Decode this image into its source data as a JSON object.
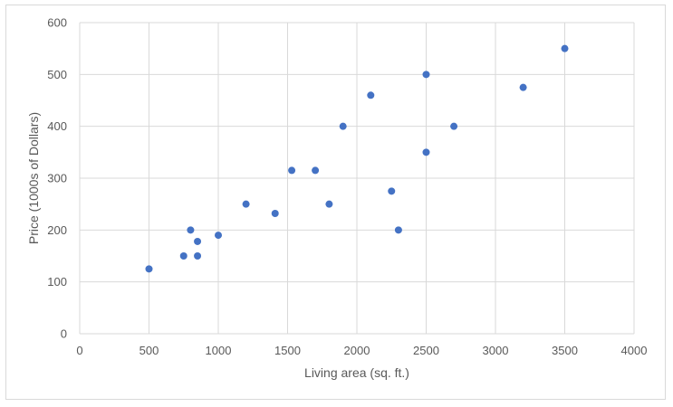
{
  "chart_data": {
    "type": "scatter",
    "title": "",
    "xlabel": "Living area (sq. ft.)",
    "ylabel": "Price (1000s of Dollars)",
    "xlim": [
      0,
      4000
    ],
    "ylim": [
      0,
      600
    ],
    "xticks": [
      0,
      500,
      1000,
      1500,
      2000,
      2500,
      3000,
      3500,
      4000
    ],
    "yticks": [
      0,
      100,
      200,
      300,
      400,
      500,
      600
    ],
    "xtick_labels": [
      "0",
      "500",
      "1000",
      "1500",
      "2000",
      "2500",
      "3000",
      "3500",
      "4000"
    ],
    "ytick_labels": [
      "0",
      "100",
      "200",
      "300",
      "400",
      "500",
      "600"
    ],
    "grid": true,
    "legend": "none",
    "marker_color": "#4472c4",
    "series": [
      {
        "points": [
          {
            "x": 500,
            "y": 125
          },
          {
            "x": 750,
            "y": 150
          },
          {
            "x": 800,
            "y": 200
          },
          {
            "x": 850,
            "y": 150
          },
          {
            "x": 850,
            "y": 178
          },
          {
            "x": 1000,
            "y": 190
          },
          {
            "x": 1200,
            "y": 250
          },
          {
            "x": 1410,
            "y": 232
          },
          {
            "x": 1530,
            "y": 315
          },
          {
            "x": 1700,
            "y": 315
          },
          {
            "x": 1800,
            "y": 250
          },
          {
            "x": 1900,
            "y": 400
          },
          {
            "x": 2100,
            "y": 460
          },
          {
            "x": 2250,
            "y": 275
          },
          {
            "x": 2300,
            "y": 200
          },
          {
            "x": 2500,
            "y": 500
          },
          {
            "x": 2500,
            "y": 350
          },
          {
            "x": 2700,
            "y": 400
          },
          {
            "x": 3200,
            "y": 475
          },
          {
            "x": 3500,
            "y": 550
          }
        ]
      }
    ]
  }
}
